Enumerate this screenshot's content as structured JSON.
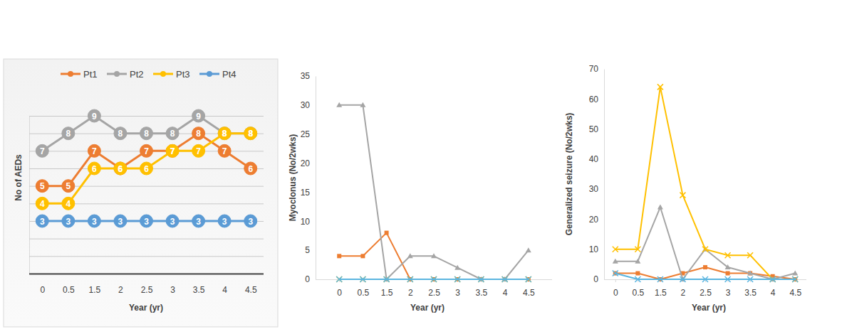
{
  "chart_data": [
    {
      "type": "line",
      "y_label": "No of AEDs",
      "x_label": "Year (yr)",
      "categories": [
        "0",
        "0.5",
        "1.5",
        "2",
        "2.5",
        "3",
        "3.5",
        "4",
        "4.5"
      ],
      "series": [
        {
          "name": "Pt1",
          "color": "#ED7D31",
          "marker": "circle",
          "values": [
            5,
            5,
            7,
            6,
            7,
            7,
            8,
            7,
            6
          ]
        },
        {
          "name": "Pt2",
          "color": "#A5A5A5",
          "marker": "circle",
          "values": [
            7,
            8,
            9,
            8,
            8,
            8,
            9,
            8,
            8
          ]
        },
        {
          "name": "Pt3",
          "color": "#FFC000",
          "marker": "circle",
          "values": [
            4,
            4,
            6,
            6,
            6,
            7,
            7,
            8,
            8
          ]
        },
        {
          "name": "Pt4",
          "color": "#5B9BD5",
          "marker": "circle",
          "values": [
            3,
            3,
            3,
            3,
            3,
            3,
            3,
            3,
            3
          ]
        }
      ],
      "ylim": [
        0,
        9
      ],
      "yticks": [
        0,
        1,
        2,
        3,
        4,
        5,
        6,
        7,
        8,
        9
      ],
      "grid": true,
      "legend": "top",
      "data_labels": true,
      "tick_labels": "x"
    },
    {
      "type": "line",
      "y_label": "Myoclonus (No/2wks)",
      "x_label": "Year (yr)",
      "categories": [
        "0",
        "0.5",
        "1.5",
        "2",
        "2.5",
        "3",
        "3.5",
        "4",
        "4.5"
      ],
      "series": [
        {
          "color": "#ED7D31",
          "marker": "square",
          "values": [
            4,
            4,
            8,
            0,
            0,
            0,
            0,
            0,
            0
          ]
        },
        {
          "color": "#A5A5A5",
          "marker": "triangle",
          "values": [
            30,
            30,
            0,
            4,
            4,
            2,
            0,
            0,
            5
          ]
        },
        {
          "color": "#FFC000",
          "marker": "x",
          "values": [
            0,
            0,
            0,
            0,
            0,
            0,
            0,
            0,
            0
          ]
        },
        {
          "color": "#5BB5E0",
          "marker": "x",
          "values": [
            0,
            0,
            0,
            0,
            0,
            0,
            0,
            0,
            0
          ]
        }
      ],
      "ylim": [
        0,
        35
      ],
      "yticks": [
        0,
        5,
        10,
        15,
        20,
        25,
        30,
        35
      ],
      "grid": false
    },
    {
      "type": "line",
      "y_label": "Generalized seizure (No/2wks)",
      "x_label": "Year (yr)",
      "categories": [
        "0",
        "0.5",
        "1.5",
        "2",
        "2.5",
        "3",
        "3.5",
        "4",
        "4.5"
      ],
      "series": [
        {
          "color": "#ED7D31",
          "marker": "square",
          "values": [
            2,
            2,
            0,
            2,
            4,
            2,
            2,
            1,
            0
          ]
        },
        {
          "color": "#A5A5A5",
          "marker": "triangle",
          "values": [
            6,
            6,
            24,
            0,
            10,
            4,
            2,
            0,
            2
          ]
        },
        {
          "color": "#FFC000",
          "marker": "x",
          "values": [
            10,
            10,
            64,
            28,
            10,
            8,
            8,
            0,
            0
          ]
        },
        {
          "color": "#5BB5E0",
          "marker": "x",
          "values": [
            2,
            0,
            0,
            0,
            0,
            0,
            0,
            0,
            0
          ]
        }
      ],
      "ylim": [
        0,
        70
      ],
      "yticks": [
        0,
        10,
        20,
        30,
        40,
        50,
        60,
        70
      ],
      "grid": false
    }
  ]
}
